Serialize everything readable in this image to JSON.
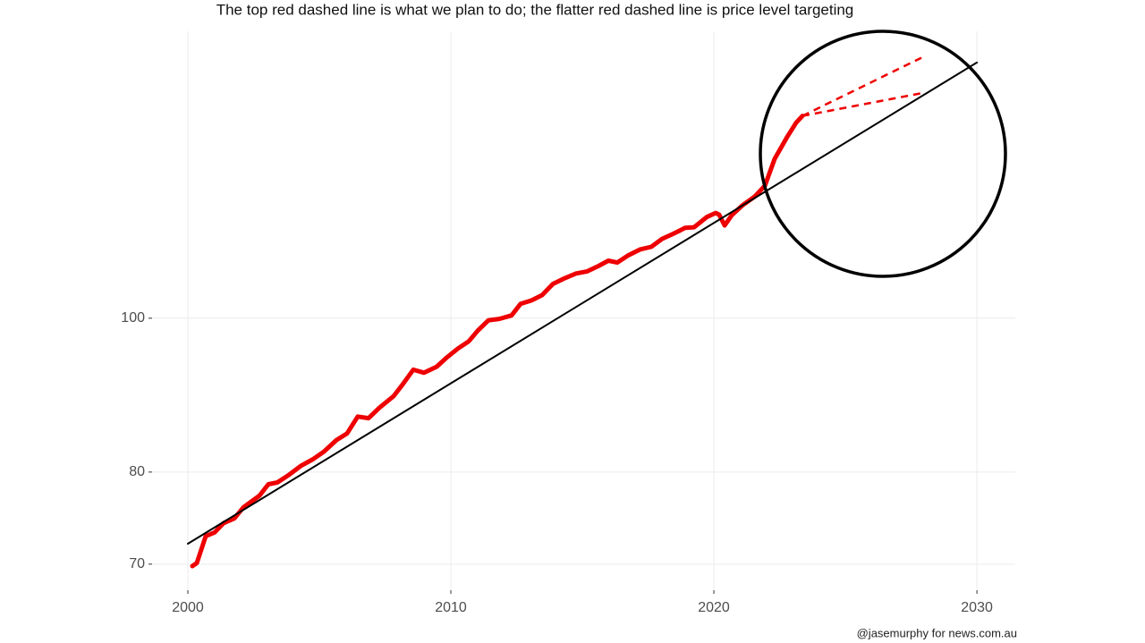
{
  "chart_data": {
    "type": "line",
    "title": "The top red dashed line is what we plan to do; the flatter red dashed line is price level targeting",
    "caption": "@jasemurphy for news.com.au",
    "log_y": true,
    "grid": true,
    "xlim": [
      1998.64,
      2031.46
    ],
    "ylim": [
      67.4,
      151.6
    ],
    "xticks": [
      2000,
      2010,
      2020,
      2030
    ],
    "yticks": [
      70,
      80,
      100
    ],
    "series": [
      {
        "color": "#ee0000",
        "width": 5,
        "dashed": false,
        "x": [
          2000.17,
          2000.34,
          2000.68,
          2001.02,
          2001.36,
          2001.77,
          2002.11,
          2002.72,
          2003.06,
          2003.4,
          2003.81,
          2004.29,
          2004.76,
          2005.17,
          2005.65,
          2006.05,
          2006.46,
          2006.87,
          2007.28,
          2007.82,
          2008.16,
          2008.57,
          2008.98,
          2009.46,
          2009.86,
          2010.27,
          2010.68,
          2011.02,
          2011.43,
          2011.84,
          2012.31,
          2012.65,
          2013.06,
          2013.47,
          2013.88,
          2014.29,
          2014.76,
          2015.17,
          2015.58,
          2015.99,
          2016.33,
          2016.73,
          2017.21,
          2017.62,
          2018.03,
          2018.44,
          2018.91,
          2019.25,
          2019.73,
          2020.07,
          2020.2,
          2020.41,
          2020.68,
          2021.09,
          2021.56,
          2021.94,
          2022.31,
          2022.79,
          2023.13,
          2023.37
        ],
        "values": [
          69.8,
          70.1,
          72.9,
          73.3,
          74.3,
          74.8,
          76.0,
          77.3,
          78.6,
          78.8,
          79.6,
          80.7,
          81.5,
          82.4,
          83.8,
          84.6,
          86.7,
          86.5,
          87.8,
          89.3,
          90.8,
          92.8,
          92.4,
          93.2,
          94.5,
          95.7,
          96.7,
          98.2,
          99.7,
          99.9,
          100.4,
          102.1,
          102.6,
          103.4,
          105.1,
          105.9,
          106.7,
          107.0,
          107.8,
          108.7,
          108.4,
          109.5,
          110.5,
          110.9,
          112.2,
          113.0,
          114.0,
          114.1,
          115.8,
          116.5,
          116.2,
          114.4,
          116.1,
          117.8,
          119.3,
          121.2,
          126.0,
          130.1,
          132.8,
          134.1
        ]
      },
      {
        "color": "#ee0000",
        "width": 2.5,
        "dashed": true,
        "x": [
          2023.37,
          2028
        ],
        "values": [
          134.1,
          146.2
        ]
      },
      {
        "color": "#ee0000",
        "width": 2.5,
        "dashed": true,
        "x": [
          2023.37,
          2028
        ],
        "values": [
          134.1,
          138.7
        ]
      },
      {
        "color": "#000000",
        "width": 2,
        "dashed": false,
        "x": [
          2000,
          2030
        ],
        "values": [
          72.1,
          144.9
        ]
      }
    ]
  }
}
